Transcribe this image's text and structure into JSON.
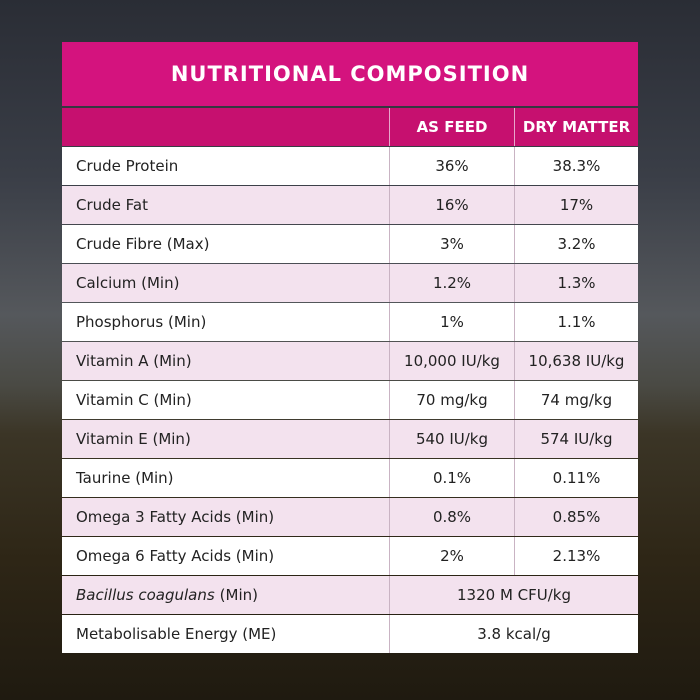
{
  "title": "NUTRITIONAL COMPOSITION",
  "table": {
    "columns": [
      "AS FEED",
      "DRY MATTER"
    ],
    "rows": [
      {
        "label": "Crude Protein",
        "cells": [
          "36%",
          "38.3%"
        ]
      },
      {
        "label": "Crude Fat",
        "cells": [
          "16%",
          "17%"
        ]
      },
      {
        "label": "Crude Fibre (Max)",
        "cells": [
          "3%",
          "3.2%"
        ]
      },
      {
        "label": "Calcium (Min)",
        "cells": [
          "1.2%",
          "1.3%"
        ]
      },
      {
        "label": "Phosphorus (Min)",
        "cells": [
          "1%",
          "1.1%"
        ]
      },
      {
        "label": "Vitamin A (Min)",
        "cells": [
          "10,000 IU/kg",
          "10,638 IU/kg"
        ]
      },
      {
        "label": "Vitamin C (Min)",
        "cells": [
          "70 mg/kg",
          "74 mg/kg"
        ]
      },
      {
        "label": "Vitamin E (Min)",
        "cells": [
          "540 IU/kg",
          "574 IU/kg"
        ]
      },
      {
        "label": "Taurine (Min)",
        "cells": [
          "0.1%",
          "0.11%"
        ]
      },
      {
        "label": "Omega 3 Fatty Acids (Min)",
        "cells": [
          "0.8%",
          "0.85%"
        ]
      },
      {
        "label": "Omega 6 Fatty Acids (Min)",
        "cells": [
          "2%",
          "2.13%"
        ]
      },
      {
        "label": {
          "italic": "Bacillus coagulans",
          "rest": "(Min)"
        },
        "cells": [
          "1320 M CFU/kg"
        ]
      },
      {
        "label": "Metabolisable Energy (ME)",
        "cells": [
          "3.8 kcal/g"
        ]
      }
    ]
  }
}
